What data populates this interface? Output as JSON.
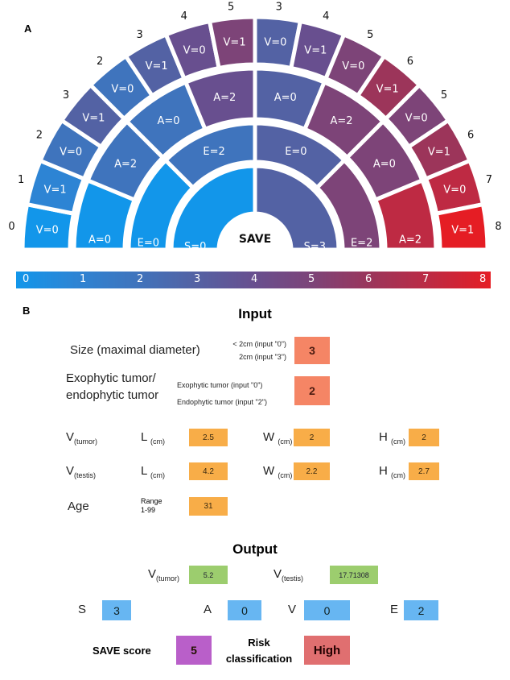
{
  "panel_a": {
    "label": "A",
    "center_label": "SAVE",
    "score_colors": [
      "#1296ea",
      "#2d84d4",
      "#3f74bd",
      "#5362a4",
      "#684f8f",
      "#7d4478",
      "#9c355a",
      "#be2a43",
      "#e51d24"
    ],
    "rings": {
      "S": [
        {
          "label": "S=0",
          "score": 0
        },
        {
          "label": "S=3",
          "score": 3
        }
      ],
      "E": [
        {
          "label": "E=0",
          "score": 0
        },
        {
          "label": "E=2",
          "score": 2
        },
        {
          "label": "E=0",
          "score": 3
        },
        {
          "label": "E=2",
          "score": 5
        }
      ],
      "A": [
        {
          "label": "A=0",
          "score": 0
        },
        {
          "label": "A=2",
          "score": 2
        },
        {
          "label": "A=0",
          "score": 2
        },
        {
          "label": "A=2",
          "score": 4
        },
        {
          "label": "A=0",
          "score": 3
        },
        {
          "label": "A=2",
          "score": 5
        },
        {
          "label": "A=0",
          "score": 5
        },
        {
          "label": "A=2",
          "score": 7
        }
      ],
      "V": [
        {
          "label": "V=0",
          "score": 0
        },
        {
          "label": "V=1",
          "score": 1
        },
        {
          "label": "V=0",
          "score": 2
        },
        {
          "label": "V=1",
          "score": 3
        },
        {
          "label": "V=0",
          "score": 2
        },
        {
          "label": "V=1",
          "score": 3
        },
        {
          "label": "V=0",
          "score": 4
        },
        {
          "label": "V=1",
          "score": 5
        },
        {
          "label": "V=0",
          "score": 3
        },
        {
          "label": "V=1",
          "score": 4
        },
        {
          "label": "V=0",
          "score": 5
        },
        {
          "label": "V=1",
          "score": 6
        },
        {
          "label": "V=0",
          "score": 5
        },
        {
          "label": "V=1",
          "score": 6
        },
        {
          "label": "V=0",
          "score": 7
        },
        {
          "label": "V=1",
          "score": 8
        }
      ]
    },
    "colorbar_ticks": [
      "0",
      "1",
      "2",
      "3",
      "4",
      "5",
      "6",
      "7",
      "8"
    ]
  },
  "panel_b": {
    "label": "B",
    "input_title": "Input",
    "size": {
      "label": "Size (maximal diameter)",
      "hint1": "< 2cm (input \"0\")",
      "hint2": "2cm (input \"3\")",
      "value": "3"
    },
    "exophytic": {
      "label1": "Exophytic tumor/",
      "label2": "endophytic tumor",
      "hint1": "Exophytic tumor (input \"0\")",
      "hint2": "Endophytic tumor (input \"2\")",
      "value": "2"
    },
    "v_tumor": {
      "label": "V",
      "sub": "(tumor)",
      "L": "2.5",
      "W": "2",
      "H": "2"
    },
    "v_testis": {
      "label": "V",
      "sub": "(testis)",
      "L": "4.2",
      "W": "2.2",
      "H": "2.7"
    },
    "dim_labels": {
      "L": "L",
      "W": "W",
      "H": "H",
      "unit": "(cm)"
    },
    "age": {
      "label": "Age",
      "range1": "Range",
      "range2": "1-99",
      "value": "31"
    },
    "output_title": "Output",
    "output": {
      "v_tumor": "5.2",
      "v_testis": "17.71308",
      "S": "3",
      "A": "0",
      "V": "0",
      "E": "2",
      "save_score_label": "SAVE score",
      "save_score": "5",
      "risk_label1": "Risk",
      "risk_label2": "classification",
      "risk": "High"
    },
    "score_letters": {
      "S": "S",
      "A": "A",
      "V": "V",
      "E": "E"
    }
  }
}
